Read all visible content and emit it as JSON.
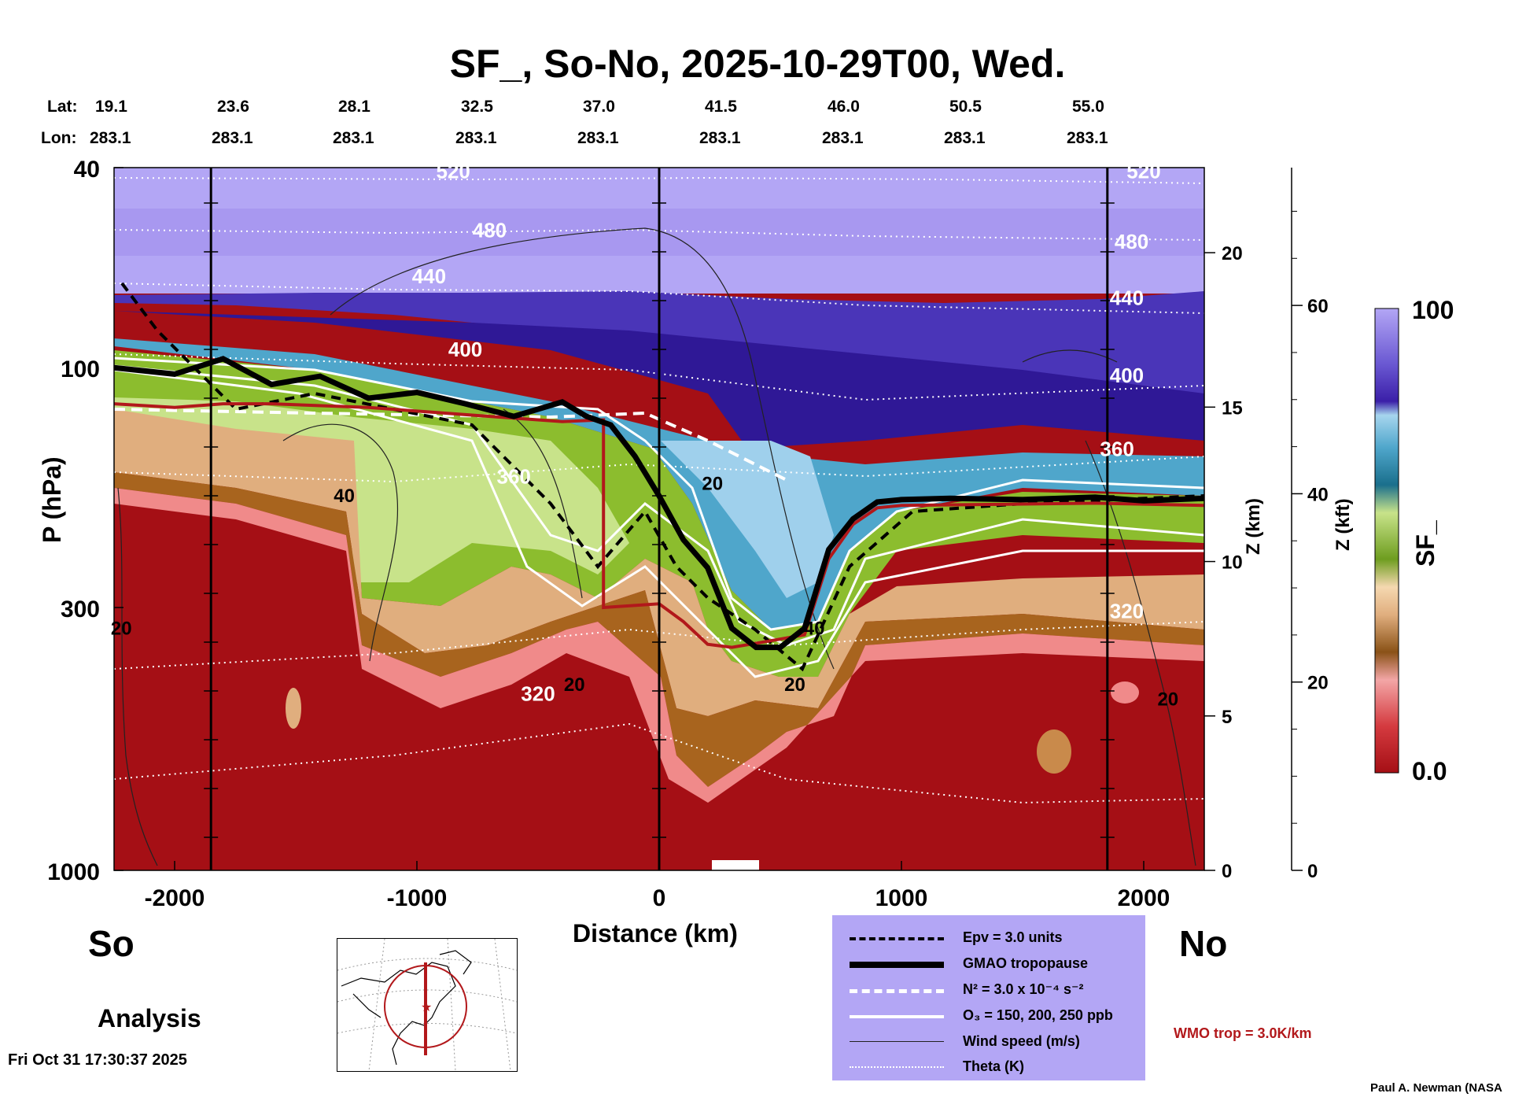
{
  "title": "SF_, So-No, 2025-10-29T00, Wed.",
  "header": {
    "lat_label": "Lat:",
    "lon_label": "Lon:",
    "lats": [
      "19.1",
      "23.6",
      "28.1",
      "32.5",
      "37.0",
      "41.5",
      "46.0",
      "50.5",
      "55.0"
    ],
    "lons": [
      "283.1",
      "283.1",
      "283.1",
      "283.1",
      "283.1",
      "283.1",
      "283.1",
      "283.1",
      "283.1"
    ]
  },
  "left_labels": {
    "south": "So",
    "analysis": "Analysis"
  },
  "right_labels": {
    "north": "No",
    "wmo": "WMO trop = 3.0K/km"
  },
  "footer": {
    "timestamp": "Fri Oct 31 17:30:37 2025",
    "credit": "Paul A. Newman (NASA"
  },
  "legend": {
    "epv": "Epv = 3.0 units",
    "tropopause": "GMAO tropopause",
    "n2": "N² = 3.0 x 10⁻⁴ s⁻²",
    "o3": "O₃ = 150, 200, 250 ppb",
    "wind": "Wind speed (m/s)",
    "theta": "Theta (K)"
  },
  "colors": {
    "background_top": "#b3a6f5",
    "deep_blue": "#3b1fa8",
    "legend_bg": "#b3a6f5",
    "wmo_red": "#b2181b",
    "low_red": "#a50f15"
  },
  "chart_data": {
    "type": "heatmap",
    "title": "SF_, So-No, 2025-10-29T00, Wed.",
    "xlabel": "Distance (km)",
    "ylabel": "P (hPa)",
    "xlim": [
      -2250,
      2250
    ],
    "ylim": [
      1000,
      40
    ],
    "x_ticks": [
      -2000,
      -1000,
      0,
      1000,
      2000
    ],
    "x_tick_labels": [
      "-2000",
      "-1000",
      "0",
      "1000",
      "2000"
    ],
    "y_ticks": [
      1000,
      300,
      100,
      40
    ],
    "y_tick_labels": [
      "1000",
      "300",
      "100",
      "40"
    ],
    "vertical_markers_km": [
      -1850,
      0,
      1850
    ],
    "z_km_axis": {
      "label": "Z (km)",
      "ticks": [
        0,
        5,
        10,
        15,
        20
      ],
      "tick_labels": [
        "0",
        "5",
        "10",
        "15",
        "20"
      ]
    },
    "z_kft_axis": {
      "label": "Z (kft)",
      "ticks": [
        0,
        20,
        40,
        60
      ],
      "tick_labels": [
        "0",
        "20",
        "40",
        "60"
      ]
    },
    "colorbar": {
      "label": "SF_",
      "min": 0.0,
      "max": 100,
      "min_label": "0.0",
      "max_label": "100"
    },
    "sf_colormap": [
      "#a50f15",
      "#c41a1c",
      "#e34a53",
      "#f08a8a",
      "#f6b4b4",
      "#a8641e",
      "#c98a4b",
      "#e4b486",
      "#f2d2a6",
      "#6e9d1f",
      "#8cbd2e",
      "#aad350",
      "#c8e38a",
      "#1a6f8c",
      "#2a89ad",
      "#4fa6cb",
      "#7cc2e2",
      "#a6d5ee",
      "#3b1fa8",
      "#4a35b8",
      "#5b48c6",
      "#7b6be0",
      "#9b8df0",
      "#b3a6f5"
    ],
    "tropopause_gmao": [
      [
        -2250,
        100
      ],
      [
        -2000,
        103
      ],
      [
        -1800,
        96
      ],
      [
        -1600,
        108
      ],
      [
        -1400,
        104
      ],
      [
        -1200,
        115
      ],
      [
        -1000,
        112
      ],
      [
        -800,
        118
      ],
      [
        -600,
        125
      ],
      [
        -400,
        117
      ],
      [
        -300,
        125
      ],
      [
        -200,
        130
      ],
      [
        -100,
        150
      ],
      [
        0,
        180
      ],
      [
        100,
        220
      ],
      [
        200,
        250
      ],
      [
        300,
        330
      ],
      [
        400,
        360
      ],
      [
        500,
        360
      ],
      [
        600,
        330
      ],
      [
        700,
        230
      ],
      [
        800,
        200
      ],
      [
        900,
        185
      ],
      [
        1000,
        183
      ],
      [
        1200,
        182
      ],
      [
        1500,
        183
      ],
      [
        1800,
        181
      ],
      [
        2000,
        184
      ],
      [
        2250,
        182
      ]
    ],
    "wmo_tropopause": [
      [
        -2250,
        118
      ],
      [
        -2000,
        120
      ],
      [
        -1800,
        118
      ],
      [
        -1600,
        118
      ],
      [
        -1200,
        120
      ],
      [
        -800,
        124
      ],
      [
        -400,
        128
      ],
      [
        -230,
        127
      ],
      [
        -230,
        300
      ],
      [
        0,
        295
      ],
      [
        100,
        320
      ],
      [
        200,
        355
      ],
      [
        300,
        360
      ],
      [
        450,
        350
      ],
      [
        600,
        340
      ],
      [
        700,
        240
      ],
      [
        800,
        205
      ],
      [
        900,
        190
      ],
      [
        1000,
        188
      ],
      [
        1400,
        187
      ],
      [
        1800,
        186
      ],
      [
        2250,
        188
      ]
    ],
    "theta_labels": [
      {
        "text": "520",
        "x": -850,
        "p": 42
      },
      {
        "text": "480",
        "x": -700,
        "p": 55
      },
      {
        "text": "440",
        "x": -950,
        "p": 68
      },
      {
        "text": "400",
        "x": -800,
        "p": 95
      },
      {
        "text": "360",
        "x": -600,
        "p": 170
      },
      {
        "text": "320",
        "x": -500,
        "p": 460
      },
      {
        "text": "520",
        "x": 2000,
        "p": 42
      },
      {
        "text": "480",
        "x": 1950,
        "p": 58
      },
      {
        "text": "440",
        "x": 1930,
        "p": 75
      },
      {
        "text": "400",
        "x": 1930,
        "p": 107
      },
      {
        "text": "360",
        "x": 1890,
        "p": 150
      },
      {
        "text": "320",
        "x": 1930,
        "p": 315
      }
    ],
    "wind_labels": [
      {
        "text": "40",
        "x": -1300,
        "p": 185
      },
      {
        "text": "20",
        "x": -2220,
        "p": 340
      },
      {
        "text": "20",
        "x": -350,
        "p": 440
      },
      {
        "text": "20",
        "x": 220,
        "p": 175
      },
      {
        "text": "40",
        "x": 640,
        "p": 340
      },
      {
        "text": "20",
        "x": 560,
        "p": 440
      },
      {
        "text": "20",
        "x": 2100,
        "p": 470
      }
    ]
  }
}
